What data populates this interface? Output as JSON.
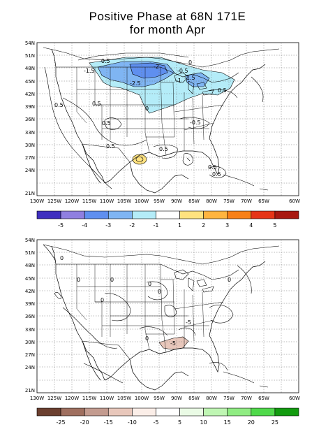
{
  "title": {
    "line1": "Positive Phase at  68N 171E",
    "line2": "for month Apr"
  },
  "map_axes": {
    "lat_labels": [
      "54N",
      "51N",
      "48N",
      "45N",
      "42N",
      "39N",
      "36N",
      "33N",
      "30N",
      "27N",
      "24N",
      "21N"
    ],
    "lon_labels": [
      "130W",
      "125W",
      "120W",
      "115W",
      "110W",
      "105W",
      "100W",
      "95W",
      "90W",
      "85W",
      "80W",
      "75W",
      "70W",
      "65W",
      "60W"
    ]
  },
  "panel_top": {
    "colorbar": {
      "colors": [
        "#3f2fbf",
        "#8f7fe0",
        "#5f8fef",
        "#7fb5f3",
        "#b4ecf8",
        "#ffffff",
        "#ffe27f",
        "#ffb43f",
        "#f88018",
        "#e63517",
        "#a81810"
      ],
      "labels": [
        "-5",
        "-4",
        "-3",
        "-2",
        "-1",
        "1",
        "2",
        "3",
        "4",
        "5"
      ]
    },
    "contour_labels": [
      "-0.5",
      "-1.5",
      "-2",
      "-2.5",
      "-0.5",
      "-1",
      "-1.5",
      "0.5",
      "0.5",
      "0.5",
      "0.5",
      "0.5",
      "-0.5",
      "0.5",
      "0.5",
      "0.5",
      "0",
      "0"
    ]
  },
  "panel_bottom": {
    "colorbar": {
      "colors": [
        "#6b3f2f",
        "#9f6f5f",
        "#c39b8f",
        "#e8c7bb",
        "#fbeee8",
        "#ffffff",
        "#eafbe5",
        "#bff6b3",
        "#8fec82",
        "#4fd94a",
        "#129b0f"
      ],
      "labels": [
        "-25",
        "-20",
        "-15",
        "-10",
        "-5",
        "5",
        "10",
        "15",
        "20",
        "25"
      ]
    },
    "contour_labels": [
      "0",
      "0",
      "0",
      "0",
      "0",
      "0",
      "0",
      "0",
      "-5",
      "-5"
    ]
  }
}
